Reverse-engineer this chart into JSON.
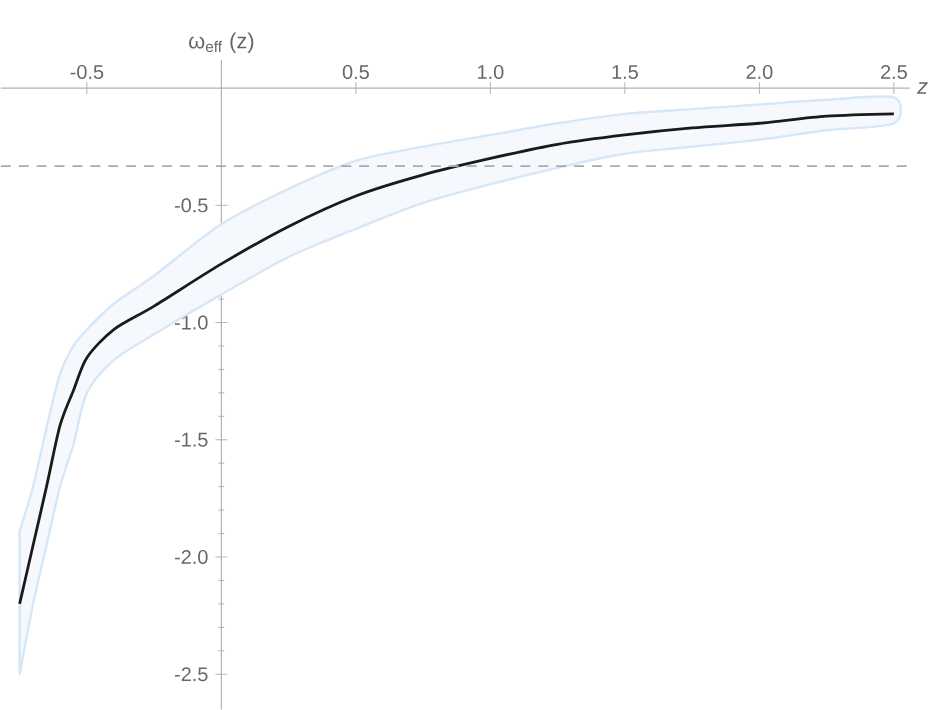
{
  "chart_data": {
    "type": "line",
    "xlabel": "z",
    "ylabel": "ω$_{eff}$ (z)",
    "xlim": [
      -0.82,
      2.56
    ],
    "ylim": [
      -2.65,
      0.12
    ],
    "xticks": [
      -0.5,
      0.5,
      {
        "value": 1,
        "label": "1.0"
      },
      1.5,
      {
        "value": 2,
        "label": "2.0"
      },
      2.5
    ],
    "yticks": [
      -0.5,
      {
        "value": -1,
        "label": "-1.0"
      },
      -1.5,
      {
        "value": -2,
        "label": "-2.0"
      },
      -2.5
    ],
    "x": [
      -0.75,
      -0.7,
      -0.65,
      -0.6,
      -0.55,
      -0.5,
      -0.4,
      -0.25,
      0,
      0.25,
      0.5,
      0.75,
      1.0,
      1.25,
      1.5,
      1.75,
      2.0,
      2.25,
      2.5
    ],
    "series": [
      {
        "color": "#1a1a1a",
        "line_style": "solid",
        "values": [
          -2.2,
          -1.95,
          -1.7,
          -1.44,
          -1.29,
          -1.15,
          -1.03,
          -0.93,
          -0.75,
          -0.59,
          -0.46,
          -0.37,
          -0.3,
          -0.24,
          -0.2,
          -0.17,
          -0.15,
          -0.12,
          -0.11
        ],
        "lower": [
          -2.5,
          -2.2,
          -1.95,
          -1.7,
          -1.52,
          -1.3,
          -1.16,
          -1.05,
          -0.88,
          -0.72,
          -0.6,
          -0.49,
          -0.41,
          -0.34,
          -0.28,
          -0.25,
          -0.22,
          -0.18,
          -0.15
        ],
        "upper": [
          -1.89,
          -1.7,
          -1.45,
          -1.22,
          -1.1,
          -1.03,
          -0.92,
          -0.8,
          -0.58,
          -0.43,
          -0.31,
          -0.25,
          -0.2,
          -0.15,
          -0.11,
          -0.09,
          -0.07,
          -0.05,
          -0.04
        ]
      }
    ],
    "ref_lines": [
      {
        "axis": "y",
        "value": -0.333,
        "color": "#aaaaaa",
        "line_style": "dashed"
      }
    ]
  }
}
